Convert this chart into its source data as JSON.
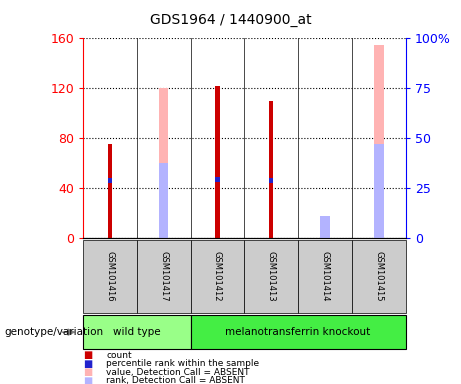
{
  "title": "GDS1964 / 1440900_at",
  "samples": [
    "GSM101416",
    "GSM101417",
    "GSM101412",
    "GSM101413",
    "GSM101414",
    "GSM101415"
  ],
  "count_values": [
    75,
    null,
    122,
    110,
    null,
    null
  ],
  "percentile_rank_values": [
    46,
    null,
    47,
    46,
    null,
    null
  ],
  "absent_value_values": [
    null,
    120,
    null,
    null,
    14,
    155
  ],
  "absent_rank_values": [
    null,
    60,
    null,
    null,
    18,
    75
  ],
  "left_ylim": [
    0,
    160
  ],
  "left_yticks": [
    0,
    40,
    80,
    120,
    160
  ],
  "right_ylabels": [
    "0",
    "25",
    "50",
    "75",
    "100%"
  ],
  "right_yticks": [
    0,
    25,
    50,
    75,
    100
  ],
  "color_count": "#cc0000",
  "color_rank": "#2222cc",
  "color_absent_value": "#ffb3b3",
  "color_absent_rank": "#b3b3ff",
  "color_group_wt": "#99ff88",
  "color_group_ko": "#44ee44",
  "color_sample_box": "#cccccc",
  "genotype_label": "genotype/variation",
  "wt_label": "wild type",
  "ko_label": "melanotransferrin knockout",
  "legend_items": [
    {
      "color": "#cc0000",
      "label": "count"
    },
    {
      "color": "#2222cc",
      "label": "percentile rank within the sample"
    },
    {
      "color": "#ffb3b3",
      "label": "value, Detection Call = ABSENT"
    },
    {
      "color": "#b3b3ff",
      "label": "rank, Detection Call = ABSENT"
    }
  ]
}
